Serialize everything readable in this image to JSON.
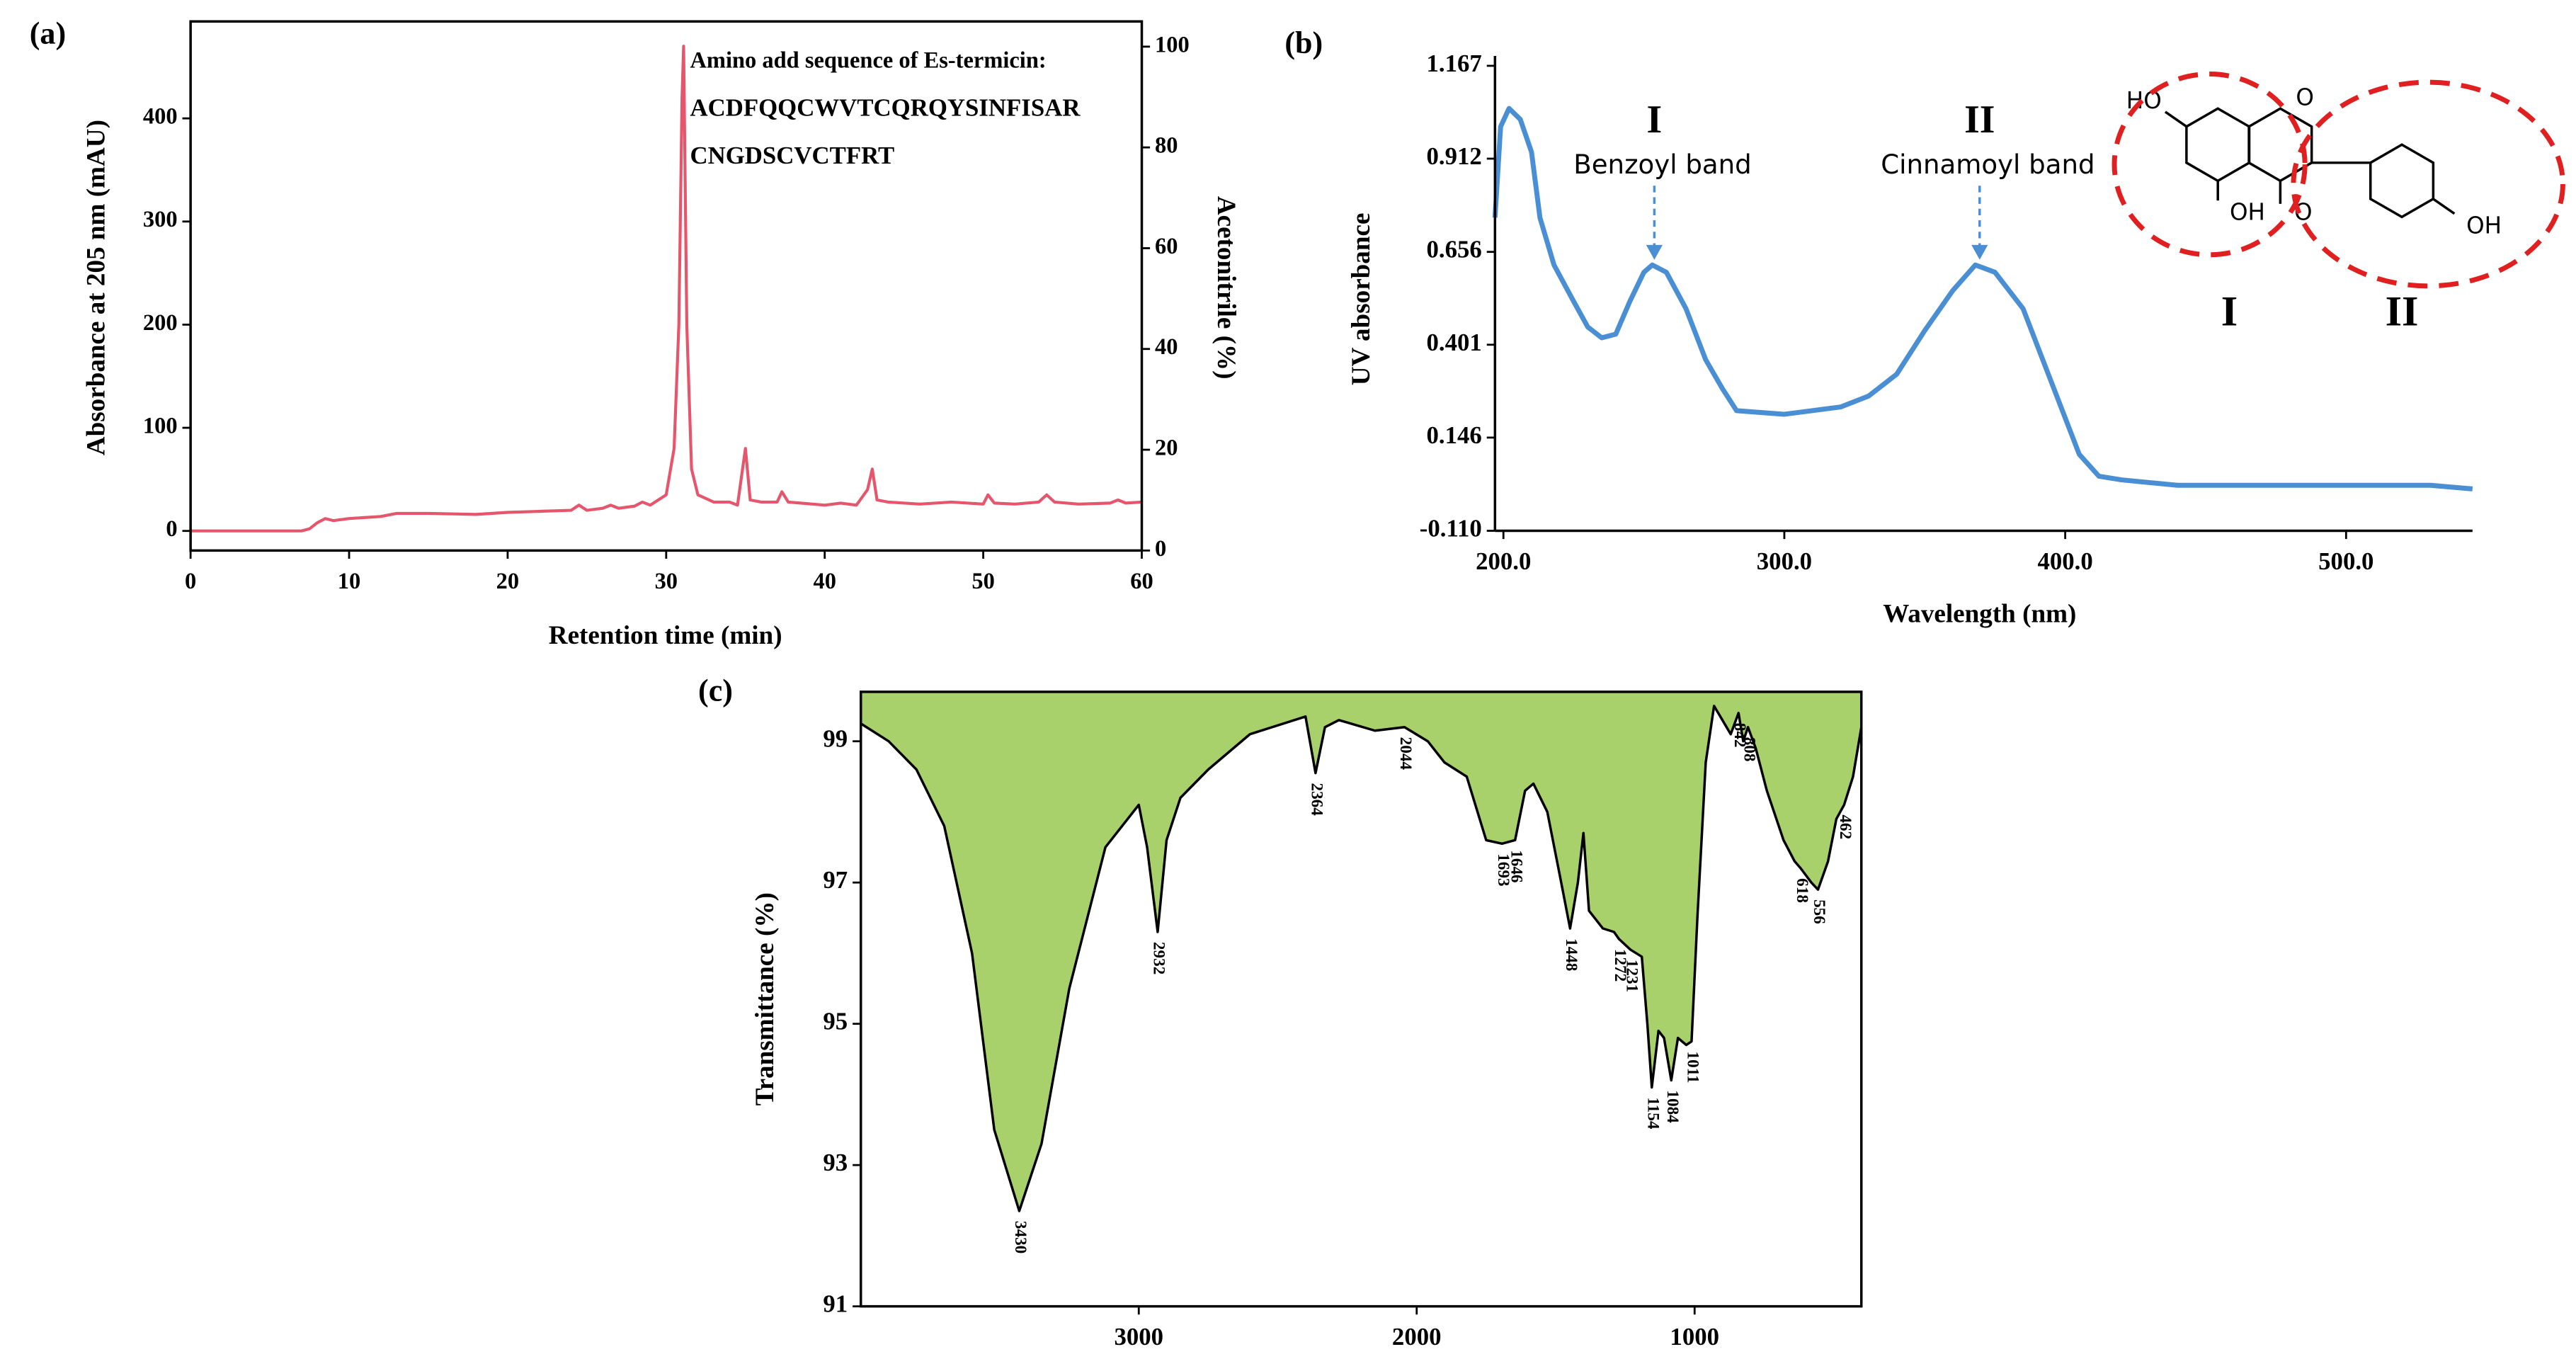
{
  "chart_data": [
    {
      "type": "line",
      "panel": "(a)",
      "xlabel": "Retention time (min)",
      "ylabel": "Absorbance at 205 nm (mAU)",
      "y2label": "Acetonitrile (%)",
      "annotations": [
        "Amino add sequence of Es-termicin:",
        "ACDFQQCWVTCQRQYSINFISAR",
        "CNGDSCVCTFRT"
      ],
      "color": "#e5566d",
      "x": [
        0,
        7,
        7.5,
        8,
        8.5,
        9,
        10,
        12,
        13,
        15,
        18,
        20,
        22,
        24,
        24.5,
        25,
        26,
        26.5,
        27,
        28,
        28.5,
        29,
        29.5,
        30,
        30.5,
        30.8,
        31,
        31.1,
        31.3,
        31.6,
        32,
        33,
        34,
        34.5,
        35,
        35.3,
        36,
        37,
        37.3,
        37.7,
        40,
        41,
        42,
        42.7,
        43,
        43.3,
        44,
        46,
        48,
        50,
        50.3,
        50.7,
        52,
        53.5,
        54,
        54.5,
        56,
        58,
        58.5,
        59,
        60
      ],
      "values": [
        0,
        0,
        2,
        8,
        12,
        10,
        12,
        14,
        17,
        17,
        16,
        18,
        19,
        20,
        25,
        20,
        22,
        25,
        22,
        24,
        28,
        25,
        30,
        35,
        80,
        200,
        420,
        470,
        200,
        60,
        35,
        28,
        28,
        25,
        80,
        30,
        28,
        28,
        38,
        28,
        25,
        27,
        25,
        40,
        60,
        30,
        28,
        26,
        28,
        26,
        35,
        27,
        26,
        28,
        35,
        28,
        26,
        27,
        30,
        27,
        28
      ],
      "xlim": [
        0,
        60
      ],
      "xticks": [
        0,
        10,
        20,
        30,
        40,
        50,
        60
      ],
      "ylim": [
        -19,
        494
      ],
      "yticks": [
        0,
        100,
        200,
        300,
        400
      ],
      "y2lim": [
        0,
        105
      ],
      "y2ticks": [
        0,
        20,
        40,
        60,
        80,
        100
      ]
    },
    {
      "type": "line",
      "panel": "(b)",
      "xlabel": "Wavelength (nm)",
      "ylabel": "UV absorbance",
      "color": "#4a8fd4",
      "bands": [
        {
          "label": "I",
          "name": "Benzoyl band"
        },
        {
          "label": "II",
          "name": "Cinnamoyl band"
        }
      ],
      "structure": {
        "atoms": [
          "HO",
          "O",
          "OH",
          "O",
          "OH"
        ],
        "rings": [
          "I",
          "II"
        ]
      },
      "x": [
        197,
        199,
        202,
        206,
        210,
        213,
        218,
        225,
        230,
        235,
        240,
        245,
        250,
        253,
        258,
        265,
        272,
        278,
        283,
        300,
        320,
        330,
        340,
        350,
        360,
        368,
        375,
        385,
        395,
        405,
        412,
        420,
        440,
        500,
        530,
        545
      ],
      "values": [
        0.75,
        1.0,
        1.05,
        1.02,
        0.93,
        0.75,
        0.62,
        0.52,
        0.45,
        0.42,
        0.43,
        0.52,
        0.6,
        0.62,
        0.6,
        0.5,
        0.36,
        0.28,
        0.22,
        0.21,
        0.23,
        0.26,
        0.32,
        0.44,
        0.55,
        0.62,
        0.6,
        0.5,
        0.3,
        0.1,
        0.04,
        0.03,
        0.015,
        0.015,
        0.015,
        0.005
      ],
      "xlim": [
        197,
        545
      ],
      "xticks": [
        {
          "value": 200,
          "label": "200.0"
        },
        {
          "value": 300,
          "label": "300.0"
        },
        {
          "value": 400,
          "label": "400.0"
        },
        {
          "value": 500,
          "label": "500.0"
        }
      ],
      "ylim": [
        -0.11,
        1.167
      ],
      "yticks": [
        {
          "value": -0.11,
          "label": "-0.110"
        },
        0.146,
        0.401,
        0.656,
        0.912,
        1.167
      ]
    },
    {
      "type": "area",
      "panel": "(c)",
      "ylabel": "Transmittance (%)",
      "color": "#a9d16b",
      "x": [
        4000,
        3900,
        3800,
        3700,
        3600,
        3520,
        3430,
        3350,
        3250,
        3120,
        3000,
        2970,
        2932,
        2900,
        2850,
        2750,
        2600,
        2400,
        2364,
        2330,
        2280,
        2150,
        2044,
        1960,
        1900,
        1820,
        1750,
        1693,
        1646,
        1610,
        1580,
        1530,
        1480,
        1448,
        1420,
        1400,
        1380,
        1330,
        1290,
        1272,
        1231,
        1190,
        1170,
        1154,
        1130,
        1110,
        1084,
        1060,
        1030,
        1011,
        990,
        960,
        930,
        900,
        870,
        842,
        825,
        808,
        780,
        740,
        680,
        640,
        618,
        580,
        556,
        520,
        490,
        462,
        430,
        400
      ],
      "values": [
        99.25,
        99.0,
        98.6,
        97.8,
        96.0,
        93.5,
        92.35,
        93.3,
        95.5,
        97.5,
        98.1,
        97.5,
        96.3,
        97.6,
        98.2,
        98.6,
        99.1,
        99.35,
        98.55,
        99.2,
        99.3,
        99.15,
        99.2,
        99.0,
        98.7,
        98.5,
        97.6,
        97.55,
        97.6,
        98.3,
        98.4,
        98.0,
        97.0,
        96.35,
        97.0,
        97.7,
        96.6,
        96.35,
        96.3,
        96.2,
        96.05,
        95.95,
        95.0,
        94.1,
        94.9,
        94.8,
        94.2,
        94.8,
        94.7,
        94.75,
        96.5,
        98.7,
        99.5,
        99.3,
        99.1,
        99.4,
        99.0,
        99.2,
        98.9,
        98.3,
        97.6,
        97.3,
        97.2,
        97.0,
        96.9,
        97.3,
        97.9,
        98.1,
        98.5,
        99.2
      ],
      "peak_labels": [
        3430,
        2932,
        2364,
        2044,
        1693,
        1646,
        1448,
        1272,
        1231,
        1154,
        1084,
        1011,
        842,
        808,
        618,
        556,
        462
      ],
      "xlim": [
        4000,
        400
      ],
      "xticks": [
        3000,
        2000,
        1000
      ],
      "ylim": [
        91,
        99.7
      ],
      "yticks": [
        91,
        93,
        95,
        97,
        99
      ]
    }
  ]
}
